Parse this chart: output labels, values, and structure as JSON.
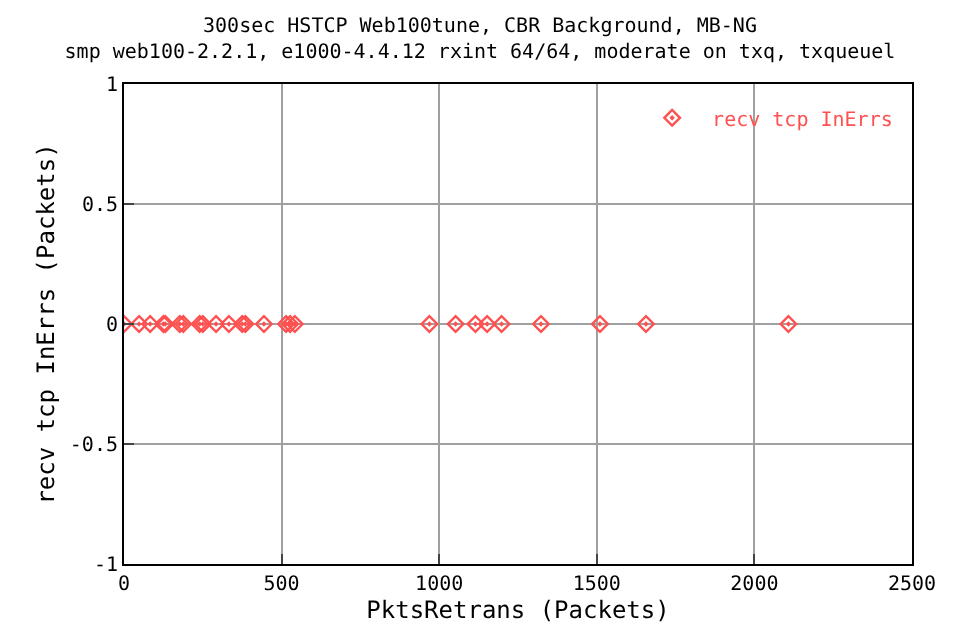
{
  "chart_data": {
    "type": "scatter",
    "title": "300sec HSTCP Web100tune, CBR Background, MB-NG",
    "subtitle": "smp web100-2.2.1, e1000-4.4.12 rxint 64/64, moderate on txq, txqueuel",
    "xlabel": "PktsRetrans (Packets)",
    "ylabel": "recv tcp InErrs (Packets)",
    "x": [
      0,
      48,
      83,
      125,
      131,
      177,
      188,
      240,
      250,
      292,
      333,
      375,
      385,
      444,
      514,
      527,
      542,
      969,
      1052,
      1115,
      1152,
      1198,
      1323,
      1510,
      1656,
      2108
    ],
    "series": [
      {
        "name": "recv tcp InErrs",
        "color": "#ff5050",
        "values": [
          0,
          0,
          0,
          0,
          0,
          0,
          0,
          0,
          0,
          0,
          0,
          0,
          0,
          0,
          0,
          0,
          0,
          0,
          0,
          0,
          0,
          0,
          0,
          0,
          0,
          0
        ]
      }
    ],
    "xlim": [
      0,
      2500
    ],
    "xticks": [
      0,
      500,
      1000,
      1500,
      2000,
      2500
    ],
    "ylim": [
      -1,
      1
    ],
    "yticks": [
      -1,
      -0.5,
      0,
      0.5,
      1
    ],
    "grid": true,
    "legend": "top right",
    "marker": "diamond"
  }
}
